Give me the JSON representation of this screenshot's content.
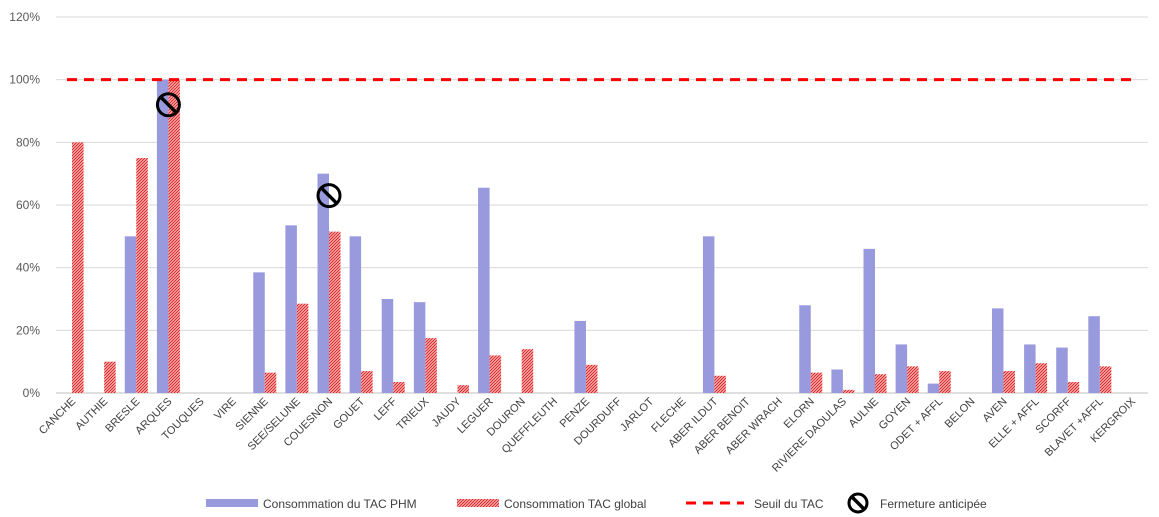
{
  "chart_data": {
    "type": "bar",
    "categories": [
      "CANCHE",
      "AUTHIE",
      "BRESLE",
      "ARQUES",
      "TOUQUES",
      "VIRE",
      "SIENNE",
      "SEE/SELUNE",
      "COUESNON",
      "GOUET",
      "LEFF",
      "TRIEUX",
      "JAUDY",
      "LEGUER",
      "DOURON",
      "QUEFFLEUTH",
      "PENZE",
      "DOURDUFF",
      "JARLOT",
      "FLECHE",
      "ABER ILDUT",
      "ABER BENOIT",
      "ABER WRACH",
      "ELORN",
      "RIVIERE DAOULAS",
      "AULNE",
      "GOYEN",
      "ODET + AFFL",
      "BELON",
      "AVEN",
      "ELLE + AFFL",
      "SCORFF",
      "BLAVET +AFFL",
      "KERGROIX"
    ],
    "series": [
      {
        "name": "Consommation du TAC PHM",
        "color": "#9999dd",
        "values": [
          0,
          0,
          50,
          100,
          0,
          0,
          38.5,
          53.5,
          70,
          50,
          30,
          29,
          0,
          65.5,
          0,
          0,
          23,
          0,
          0,
          0,
          50,
          0,
          0,
          28,
          7.5,
          46,
          15.5,
          3,
          0,
          27,
          15.5,
          14.5,
          24.5,
          0
        ]
      },
      {
        "name": "Consommation TAC global",
        "color": "#e8383d",
        "values": [
          80,
          10,
          75,
          100,
          0,
          0,
          6.5,
          28.5,
          51.5,
          7,
          3.5,
          17.5,
          2.5,
          12,
          14,
          0,
          9,
          0,
          0,
          0,
          5.5,
          0,
          0,
          6.5,
          1,
          6,
          8.5,
          7,
          0,
          7,
          9.5,
          3.5,
          8.5,
          0
        ]
      }
    ],
    "threshold": {
      "name": "Seuil du TAC",
      "value": 100,
      "color": "#ff0000"
    },
    "closure_markers": {
      "name": "Fermeture anticipée",
      "categories": [
        "ARQUES",
        "COUESNON"
      ],
      "values": [
        92,
        63
      ]
    },
    "y_ticks": [
      "0%",
      "20%",
      "40%",
      "60%",
      "80%",
      "100%",
      "120%"
    ],
    "ylim": [
      0,
      120
    ],
    "grid": true,
    "legend_position": "bottom"
  }
}
